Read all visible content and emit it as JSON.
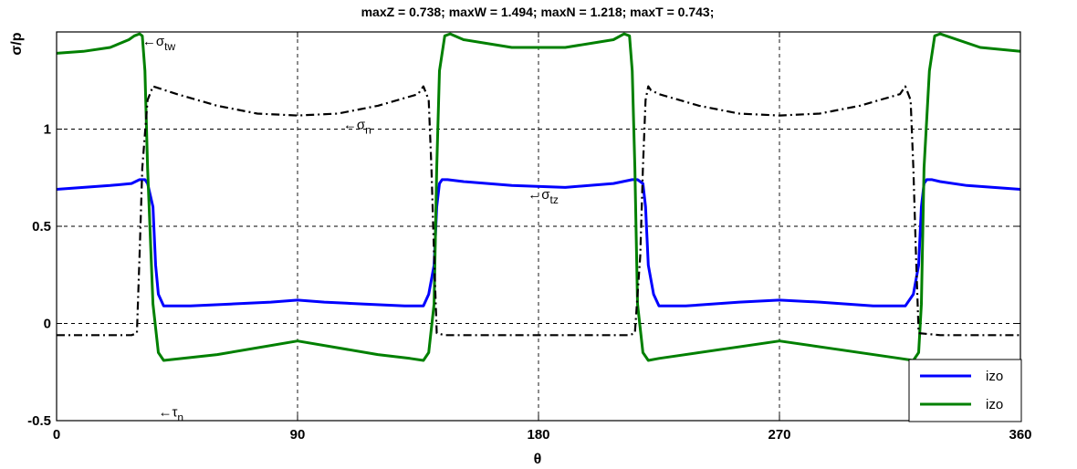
{
  "chart_data": {
    "type": "line",
    "title": "maxZ = 0.738; maxW = 1.494; maxN = 1.218; maxT = 0.743;",
    "xlabel": "θ",
    "ylabel": "σ/p",
    "xlim": [
      0,
      360
    ],
    "ylim": [
      -0.5,
      1.5
    ],
    "xticks": [
      0,
      90,
      180,
      270,
      360
    ],
    "xtick_labels": [
      "0",
      "90",
      "180",
      "270",
      "360"
    ],
    "yticks": [
      -0.5,
      0,
      0.5,
      1
    ],
    "ytick_labels": [
      "-0.5",
      "0",
      "0.5",
      "1"
    ],
    "grid": true,
    "legend": {
      "placement": "bottom-right",
      "entries": [
        "izo",
        "izo"
      ]
    },
    "series": [
      {
        "name": "izo",
        "color": "#0000ff",
        "style": "solid",
        "x": [
          0,
          10,
          20,
          28,
          31,
          33,
          34,
          36,
          37,
          38,
          40,
          50,
          65,
          80,
          90,
          100,
          115,
          130,
          137,
          139,
          141,
          142,
          143,
          144,
          146,
          152,
          170,
          190,
          208,
          215,
          217,
          219,
          220,
          221,
          223,
          225,
          235,
          255,
          270,
          285,
          305,
          317,
          320,
          322,
          323,
          324,
          325,
          327,
          330,
          340,
          360
        ],
        "y": [
          0.69,
          0.7,
          0.71,
          0.72,
          0.74,
          0.74,
          0.72,
          0.6,
          0.3,
          0.15,
          0.09,
          0.09,
          0.1,
          0.11,
          0.12,
          0.11,
          0.1,
          0.09,
          0.09,
          0.15,
          0.3,
          0.6,
          0.72,
          0.74,
          0.74,
          0.73,
          0.71,
          0.7,
          0.72,
          0.74,
          0.74,
          0.72,
          0.6,
          0.3,
          0.15,
          0.09,
          0.09,
          0.11,
          0.12,
          0.11,
          0.09,
          0.09,
          0.15,
          0.3,
          0.6,
          0.72,
          0.74,
          0.74,
          0.73,
          0.71,
          0.69
        ]
      },
      {
        "name": "izo",
        "color": "#008000",
        "style": "solid",
        "x": [
          0,
          10,
          20,
          27,
          29,
          31,
          32,
          33,
          34,
          36,
          38,
          40,
          60,
          90,
          120,
          132,
          137,
          139,
          141,
          142,
          143,
          145,
          147,
          152,
          170,
          190,
          208,
          212,
          214,
          215,
          216,
          217,
          219,
          221,
          225,
          250,
          270,
          290,
          315,
          320,
          322,
          323,
          324,
          326,
          328,
          330,
          345,
          360
        ],
        "y": [
          1.39,
          1.4,
          1.42,
          1.46,
          1.48,
          1.49,
          1.48,
          1.3,
          0.8,
          0.1,
          -0.15,
          -0.19,
          -0.16,
          -0.09,
          -0.16,
          -0.18,
          -0.19,
          -0.15,
          0.1,
          0.8,
          1.3,
          1.48,
          1.49,
          1.46,
          1.42,
          1.42,
          1.46,
          1.49,
          1.48,
          1.3,
          0.8,
          0.1,
          -0.15,
          -0.19,
          -0.18,
          -0.13,
          -0.09,
          -0.13,
          -0.18,
          -0.19,
          -0.15,
          0.1,
          0.8,
          1.3,
          1.48,
          1.49,
          1.42,
          1.4
        ]
      },
      {
        "name": "σn",
        "color": "#000000",
        "style": "dashdot",
        "x": [
          0,
          15,
          28,
          30,
          31,
          32,
          34,
          36,
          45,
          60,
          75,
          90,
          105,
          120,
          135,
          137,
          139,
          140,
          141,
          142,
          145,
          160,
          180,
          200,
          214,
          216,
          218,
          219,
          220,
          221,
          222,
          225,
          240,
          255,
          270,
          285,
          300,
          315,
          317,
          319,
          320,
          321,
          322,
          330,
          345,
          360
        ],
        "y": [
          -0.06,
          -0.06,
          -0.06,
          -0.05,
          0.35,
          0.8,
          1.15,
          1.22,
          1.18,
          1.12,
          1.08,
          1.07,
          1.08,
          1.12,
          1.18,
          1.22,
          1.15,
          0.8,
          0.35,
          -0.05,
          -0.06,
          -0.06,
          -0.06,
          -0.06,
          -0.06,
          -0.05,
          0.35,
          0.8,
          1.15,
          1.22,
          1.2,
          1.18,
          1.12,
          1.08,
          1.07,
          1.08,
          1.12,
          1.18,
          1.22,
          1.15,
          0.8,
          0.35,
          -0.05,
          -0.06,
          -0.06,
          -0.06
        ]
      }
    ],
    "annotations": [
      {
        "arrow": "←",
        "symbol": "σ",
        "sub": "tw",
        "x": 32,
        "y": 1.43
      },
      {
        "arrow": "←",
        "symbol": "σ",
        "sub": "n",
        "x": 107,
        "y": 1.0
      },
      {
        "arrow": "←",
        "symbol": "σ",
        "sub": "tz",
        "x": 176,
        "y": 0.64
      },
      {
        "arrow": "←",
        "symbol": "τ",
        "sub": "n",
        "x": 38,
        "y": -0.48
      }
    ]
  }
}
